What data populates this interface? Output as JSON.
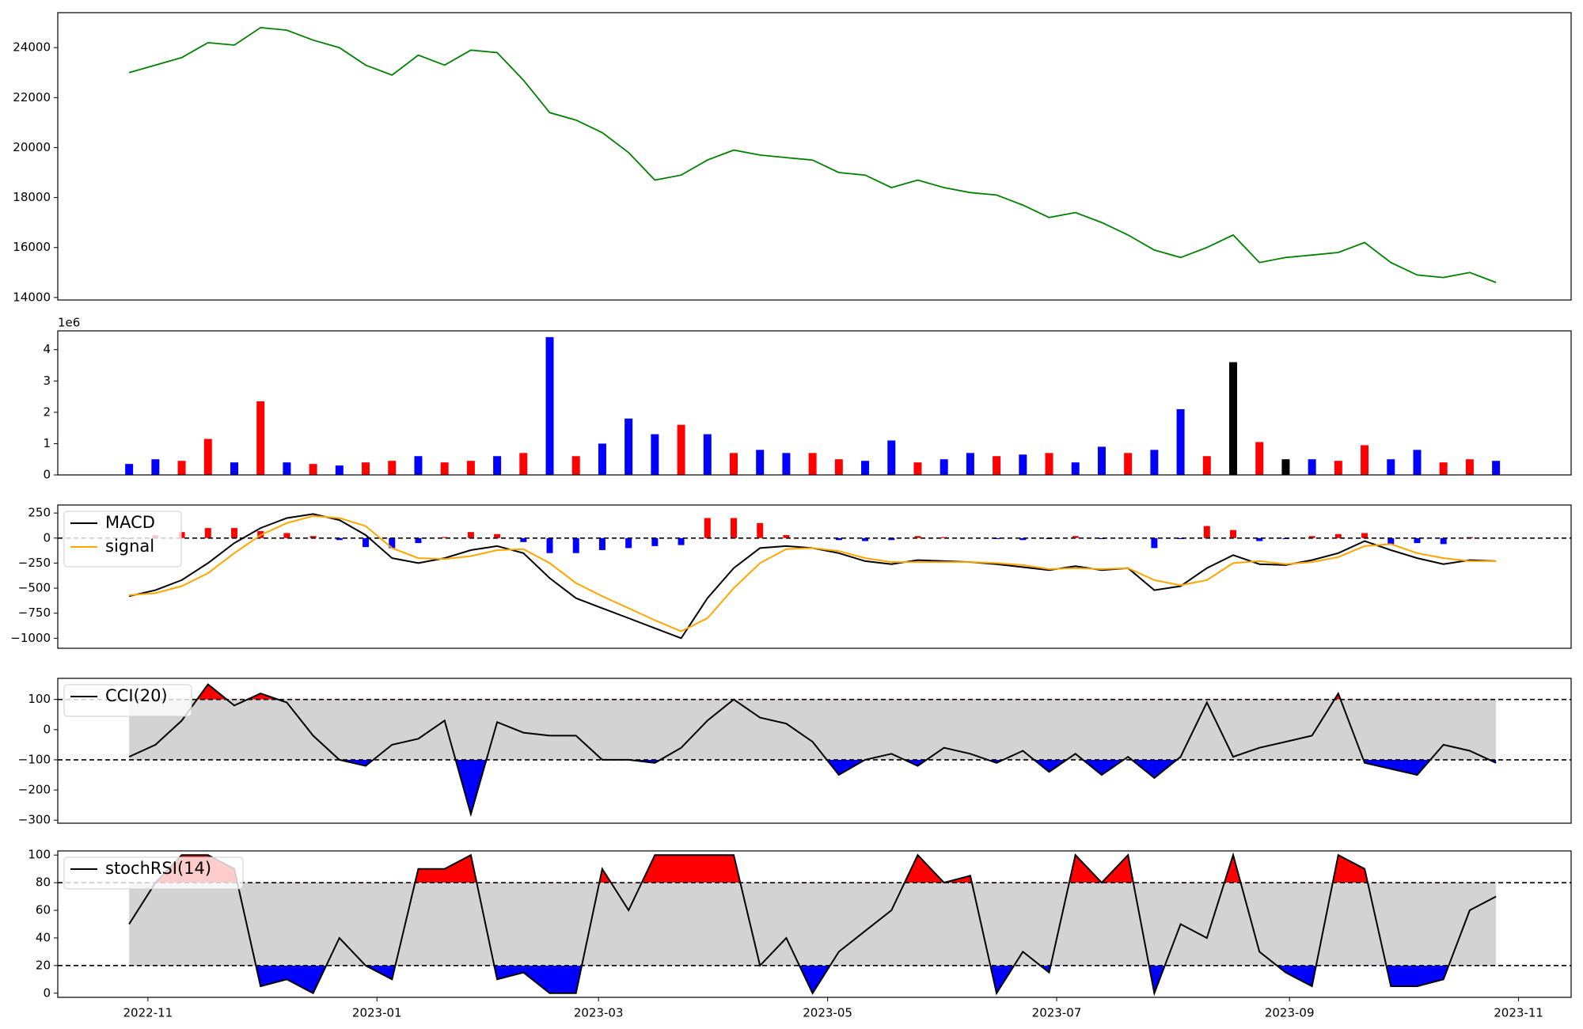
{
  "chart_data": [
    {
      "type": "line",
      "color": "#008000",
      "values": [
        23000,
        23300,
        23600,
        24200,
        24100,
        24800,
        24700,
        24300,
        24000,
        23300,
        22900,
        23700,
        23300,
        23900,
        23800,
        22700,
        21400,
        21100,
        20600,
        19800,
        18700,
        18900,
        19500,
        19900,
        19700,
        19600,
        19500,
        19000,
        18900,
        18400,
        18700,
        18400,
        18200,
        18100,
        17700,
        17200,
        17400,
        17000,
        16500,
        15900,
        15600,
        16000,
        16500,
        15400,
        15600,
        15700,
        15800,
        16200,
        15400,
        14900,
        14800,
        15000,
        14600
      ],
      "ylim": [
        13900,
        25400
      ],
      "yticks": [
        14000,
        16000,
        18000,
        20000,
        22000,
        24000
      ]
    },
    {
      "type": "bar",
      "offset_label": "1e6",
      "values": [
        350000,
        500000,
        450000,
        1150000,
        400000,
        2350000,
        400000,
        350000,
        300000,
        400000,
        450000,
        600000,
        400000,
        450000,
        600000,
        700000,
        4400000,
        600000,
        1000000,
        1800000,
        1300000,
        1600000,
        1300000,
        700000,
        800000,
        700000,
        700000,
        500000,
        450000,
        1100000,
        400000,
        500000,
        700000,
        600000,
        650000,
        700000,
        400000,
        900000,
        700000,
        800000,
        2100000,
        600000,
        3600000,
        1050000,
        500000,
        500000,
        450000,
        950000,
        500000,
        800000,
        400000,
        500000,
        450000
      ],
      "colors": [
        "blue",
        "blue",
        "red",
        "red",
        "blue",
        "red",
        "blue",
        "red",
        "blue",
        "red",
        "red",
        "blue",
        "red",
        "red",
        "blue",
        "red",
        "blue",
        "red",
        "blue",
        "blue",
        "blue",
        "red",
        "blue",
        "red",
        "blue",
        "blue",
        "red",
        "red",
        "blue",
        "blue",
        "red",
        "blue",
        "blue",
        "red",
        "blue",
        "red",
        "blue",
        "blue",
        "red",
        "blue",
        "blue",
        "red",
        "black",
        "red",
        "black",
        "blue",
        "red",
        "red",
        "blue",
        "blue",
        "red",
        "red",
        "blue"
      ],
      "ylim": [
        0,
        4600000
      ],
      "yticks": [
        0,
        {
          "value": 1000000,
          "label": "1"
        },
        {
          "value": 2000000,
          "label": "2"
        },
        {
          "value": 3000000,
          "label": "3"
        },
        {
          "value": 4000000,
          "label": "4"
        }
      ]
    },
    {
      "type": "macd",
      "levels": [
        0
      ],
      "legend": "upper left",
      "series": [
        {
          "name": "MACD",
          "color": "black",
          "values": [
            -580,
            -520,
            -420,
            -250,
            -50,
            100,
            200,
            240,
            180,
            30,
            -200,
            -250,
            -200,
            -120,
            -80,
            -150,
            -400,
            -600,
            -700,
            -800,
            -900,
            -1000,
            -600,
            -300,
            -100,
            -80,
            -100,
            -150,
            -230,
            -260,
            -220,
            -230,
            -240,
            -260,
            -290,
            -320,
            -280,
            -320,
            -300,
            -520,
            -480,
            -300,
            -170,
            -260,
            -270,
            -220,
            -150,
            -30,
            -120,
            -200,
            -260,
            -220,
            -230
          ]
        },
        {
          "name": "signal",
          "color": "orange",
          "values": [
            -570,
            -550,
            -480,
            -350,
            -150,
            30,
            150,
            220,
            200,
            120,
            -100,
            -200,
            -210,
            -180,
            -120,
            -110,
            -250,
            -450,
            -580,
            -700,
            -820,
            -930,
            -800,
            -500,
            -250,
            -110,
            -100,
            -130,
            -200,
            -240,
            -240,
            -240,
            -240,
            -250,
            -270,
            -310,
            -300,
            -310,
            -300,
            -420,
            -470,
            -420,
            -250,
            -230,
            -260,
            -240,
            -190,
            -80,
            -60,
            -150,
            -200,
            -230,
            -230
          ]
        }
      ],
      "histogram": {
        "positive_color": "red",
        "negative_color": "blue",
        "values": [
          -10,
          30,
          60,
          100,
          100,
          70,
          50,
          20,
          -20,
          -90,
          -100,
          -50,
          10,
          60,
          40,
          -40,
          -150,
          -150,
          -120,
          -100,
          -80,
          -70,
          200,
          200,
          150,
          30,
          0,
          -20,
          -30,
          -20,
          20,
          10,
          0,
          -10,
          -20,
          -10,
          20,
          -10,
          0,
          -100,
          -10,
          120,
          80,
          -30,
          -10,
          20,
          40,
          50,
          -60,
          -50,
          -60,
          10,
          0
        ]
      },
      "ylim": [
        -1100,
        330
      ],
      "yticks": [
        {
          "value": -1000,
          "label": "−1000"
        },
        {
          "value": -750,
          "label": "−750"
        },
        {
          "value": -500,
          "label": "−500"
        },
        {
          "value": -250,
          "label": "−250"
        },
        0,
        250
      ]
    },
    {
      "type": "band",
      "levels": [
        -100,
        100
      ],
      "legend": "upper left",
      "fill_colors": {
        "inner": "lightgray",
        "above": "red",
        "below": "blue"
      },
      "series": [
        {
          "name": "CCI(20)",
          "color": "black",
          "values": [
            -90,
            -50,
            30,
            150,
            80,
            120,
            90,
            -20,
            -100,
            -120,
            -50,
            -30,
            30,
            -280,
            25,
            -10,
            -20,
            -20,
            -100,
            -100,
            -110,
            -60,
            30,
            100,
            40,
            20,
            -40,
            -150,
            -100,
            -80,
            -120,
            -60,
            -80,
            -110,
            -70,
            -140,
            -80,
            -150,
            -90,
            -160,
            -90,
            90,
            -90,
            -60,
            -40,
            -20,
            120,
            -110,
            -130,
            -150,
            -50,
            -70,
            -110
          ]
        }
      ],
      "ylim": [
        -310,
        170
      ],
      "yticks": [
        {
          "value": -300,
          "label": "−300"
        },
        {
          "value": -200,
          "label": "−200"
        },
        {
          "value": -100,
          "label": "−100"
        },
        0,
        100
      ]
    },
    {
      "type": "band",
      "levels": [
        20,
        80
      ],
      "legend": "upper left",
      "fill_colors": {
        "inner": "lightgray",
        "above": "red",
        "below": "blue"
      },
      "series": [
        {
          "name": "stochRSI(14)",
          "color": "black",
          "values": [
            50,
            80,
            100,
            100,
            90,
            5,
            10,
            0,
            40,
            20,
            10,
            90,
            90,
            100,
            10,
            15,
            0,
            0,
            90,
            60,
            100,
            100,
            100,
            100,
            20,
            40,
            0,
            30,
            45,
            60,
            100,
            80,
            85,
            0,
            30,
            15,
            100,
            80,
            100,
            0,
            50,
            40,
            100,
            30,
            15,
            5,
            100,
            90,
            5,
            5,
            10,
            60,
            70
          ]
        }
      ],
      "ylim": [
        -3,
        103
      ],
      "yticks": [
        0,
        20,
        40,
        60,
        80,
        100
      ],
      "x": [
        "2022-10-27",
        "2022-11-03",
        "2022-11-10",
        "2022-11-17",
        "2022-11-24",
        "2022-12-01",
        "2022-12-08",
        "2022-12-15",
        "2022-12-22",
        "2022-12-29",
        "2023-01-05",
        "2023-01-12",
        "2023-01-19",
        "2023-01-26",
        "2023-02-02",
        "2023-02-09",
        "2023-02-16",
        "2023-02-23",
        "2023-03-02",
        "2023-03-09",
        "2023-03-16",
        "2023-03-23",
        "2023-03-30",
        "2023-04-06",
        "2023-04-13",
        "2023-04-20",
        "2023-04-27",
        "2023-05-04",
        "2023-05-11",
        "2023-05-18",
        "2023-05-25",
        "2023-06-01",
        "2023-06-08",
        "2023-06-15",
        "2023-06-22",
        "2023-06-29",
        "2023-07-06",
        "2023-07-13",
        "2023-07-20",
        "2023-07-27",
        "2023-08-03",
        "2023-08-10",
        "2023-08-17",
        "2023-08-24",
        "2023-08-31",
        "2023-09-07",
        "2023-09-14",
        "2023-09-21",
        "2023-09-28",
        "2023-10-05",
        "2023-10-12",
        "2023-10-19",
        "2023-10-26"
      ],
      "xlim": [
        "2022-10-08",
        "2023-11-15"
      ],
      "xticks": [
        {
          "value": "2022-11-01",
          "label": "2022-11"
        },
        {
          "value": "2023-01-01",
          "label": "2023-01"
        },
        {
          "value": "2023-03-01",
          "label": "2023-03"
        },
        {
          "value": "2023-05-01",
          "label": "2023-05"
        },
        {
          "value": "2023-07-01",
          "label": "2023-07"
        },
        {
          "value": "2023-09-01",
          "label": "2023-09"
        },
        {
          "value": "2023-11-01",
          "label": "2023-11"
        }
      ]
    }
  ]
}
